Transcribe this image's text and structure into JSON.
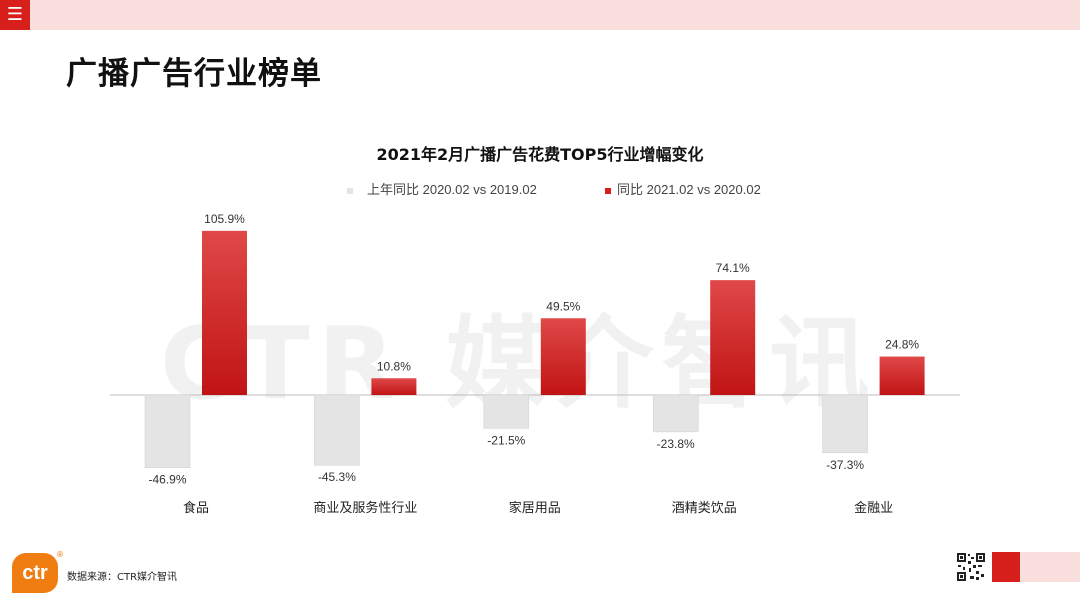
{
  "header": {
    "menu_icon": "hamburger-icon"
  },
  "page_title": "广播广告行业榜单",
  "watermark": "CTR 媒介智讯",
  "footer": {
    "source": "数据来源：CTR媒介智讯",
    "logo_text": "ctr",
    "logo_mark": "®"
  },
  "colors": {
    "accent": "#d7201c",
    "prior": "#e4e4e4",
    "topbar": "#f9dede",
    "logo": "#ef7d12"
  },
  "chart_data": {
    "type": "bar",
    "title": "2021年2月广播广告花费TOP5行业增幅变化",
    "categories": [
      "食品",
      "商业及服务性行业",
      "家居用品",
      "酒精类饮品",
      "金融业"
    ],
    "series": [
      {
        "name": "上年同比 2020.02 vs 2019.02",
        "values": [
          -46.9,
          -45.3,
          -21.5,
          -23.8,
          -37.3
        ],
        "labels": [
          "-46.9%",
          "-45.3%",
          "-21.5%",
          "-23.8%",
          "-37.3%"
        ],
        "color": "#e4e4e4"
      },
      {
        "name": "同比 2021.02 vs 2020.02",
        "values": [
          105.9,
          10.8,
          49.5,
          74.1,
          24.8
        ],
        "labels": [
          "105.9%",
          "10.8%",
          "49.5%",
          "74.1%",
          "24.8%"
        ],
        "color": "#d7201c"
      }
    ],
    "unit": "%",
    "legend": "top",
    "grid": false
  }
}
